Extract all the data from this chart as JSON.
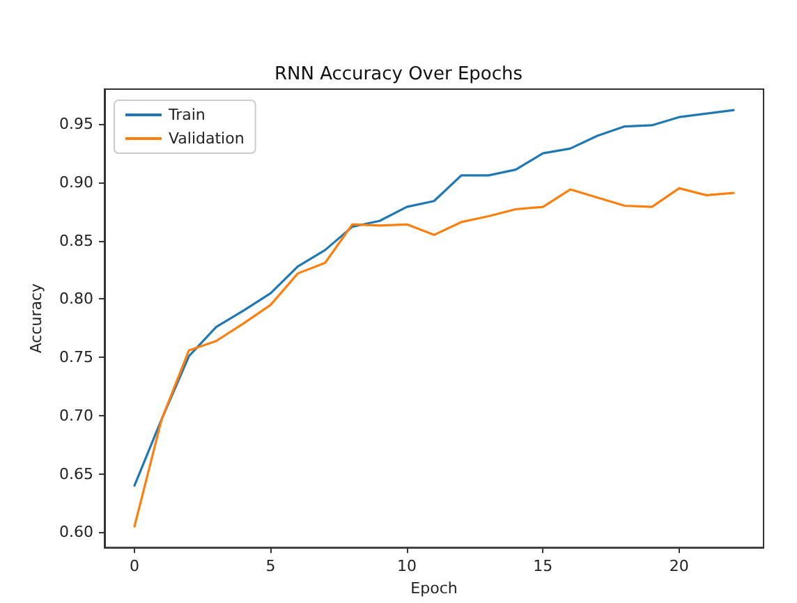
{
  "chart_data": {
    "type": "line",
    "title": "RNN Accuracy Over Epochs",
    "xlabel": "Epoch",
    "ylabel": "Accuracy",
    "x": [
      0,
      1,
      2,
      3,
      4,
      5,
      6,
      7,
      8,
      9,
      10,
      11,
      12,
      13,
      14,
      15,
      16,
      17,
      18,
      19,
      20,
      21,
      22
    ],
    "series": [
      {
        "name": "Train",
        "color": "#1f77b4",
        "values": [
          0.64,
          0.697,
          0.751,
          0.776,
          0.79,
          0.805,
          0.828,
          0.842,
          0.862,
          0.867,
          0.879,
          0.884,
          0.906,
          0.906,
          0.911,
          0.925,
          0.929,
          0.94,
          0.948,
          0.949,
          0.956,
          0.959,
          0.962
        ]
      },
      {
        "name": "Validation",
        "color": "#ff7f0e",
        "values": [
          0.605,
          0.697,
          0.756,
          0.764,
          0.779,
          0.795,
          0.822,
          0.831,
          0.864,
          0.863,
          0.864,
          0.855,
          0.866,
          0.871,
          0.877,
          0.879,
          0.894,
          0.887,
          0.88,
          0.879,
          0.895,
          0.889,
          0.891
        ]
      }
    ],
    "xlim": [
      -1.1,
      23.1
    ],
    "xticks": [
      0,
      5,
      10,
      15,
      20
    ],
    "ylim": [
      0.587,
      0.98
    ],
    "yticks": [
      {
        "value": 0.6,
        "label": "0.60"
      },
      {
        "value": 0.65,
        "label": "0.65"
      },
      {
        "value": 0.7,
        "label": "0.70"
      },
      {
        "value": 0.75,
        "label": "0.75"
      },
      {
        "value": 0.8,
        "label": "0.80"
      },
      {
        "value": 0.85,
        "label": "0.85"
      },
      {
        "value": 0.9,
        "label": "0.90"
      },
      {
        "value": 0.95,
        "label": "0.95"
      }
    ],
    "grid": false,
    "legend": "top left",
    "marker": "none",
    "line_style": "solid"
  }
}
